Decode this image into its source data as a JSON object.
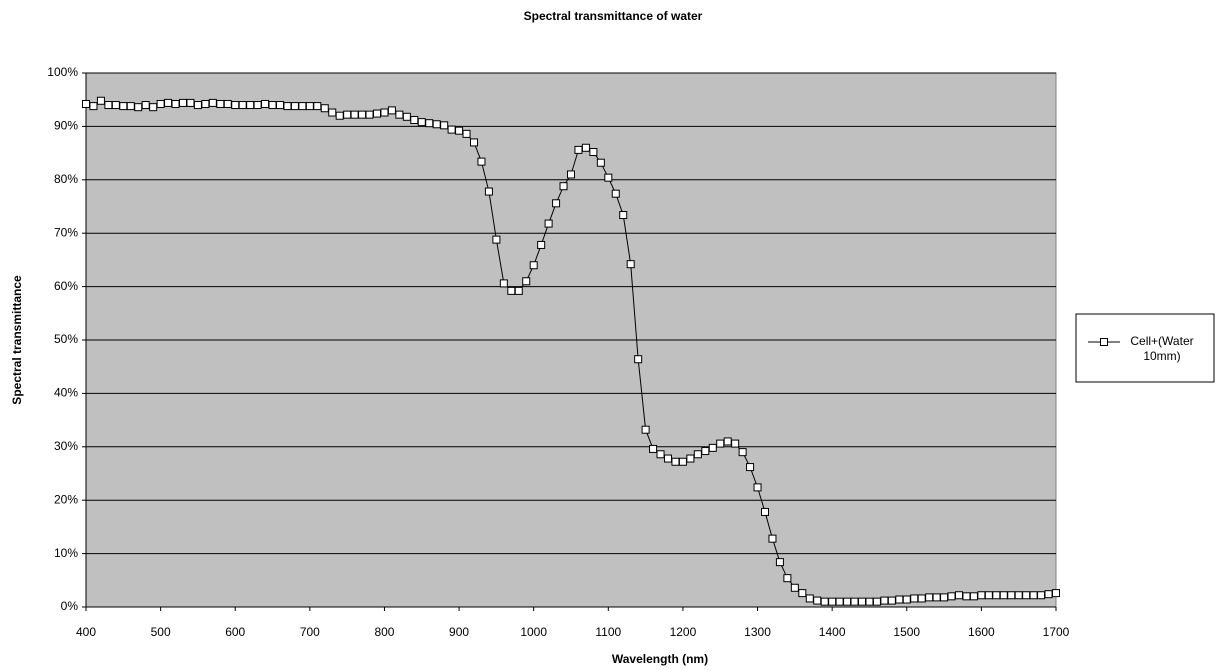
{
  "chart_data": {
    "type": "line",
    "title": "Spectral transmittance of water",
    "xlabel": "Wavelength (nm)",
    "ylabel": "Spectral transmittance",
    "x": [
      400,
      410,
      420,
      430,
      440,
      450,
      460,
      470,
      480,
      490,
      500,
      510,
      520,
      530,
      540,
      550,
      560,
      570,
      580,
      590,
      600,
      610,
      620,
      630,
      640,
      650,
      660,
      670,
      680,
      690,
      700,
      710,
      720,
      730,
      740,
      750,
      760,
      770,
      780,
      790,
      800,
      810,
      820,
      830,
      840,
      850,
      860,
      870,
      880,
      890,
      900,
      910,
      920,
      930,
      940,
      950,
      960,
      970,
      980,
      990,
      1000,
      1010,
      1020,
      1030,
      1040,
      1050,
      1060,
      1070,
      1080,
      1090,
      1100,
      1110,
      1120,
      1130,
      1140,
      1150,
      1160,
      1170,
      1180,
      1190,
      1200,
      1210,
      1220,
      1230,
      1240,
      1250,
      1260,
      1270,
      1280,
      1290,
      1300,
      1310,
      1320,
      1330,
      1340,
      1350,
      1360,
      1370,
      1380,
      1390,
      1400,
      1410,
      1420,
      1430,
      1440,
      1450,
      1460,
      1470,
      1480,
      1490,
      1500,
      1510,
      1520,
      1530,
      1540,
      1550,
      1560,
      1570,
      1580,
      1590,
      1600,
      1610,
      1620,
      1630,
      1640,
      1650,
      1660,
      1670,
      1680,
      1690,
      1700
    ],
    "series": [
      {
        "name": "Cell+(Water 10mm)",
        "color": "#000000",
        "values": [
          94.2,
          93.8,
          94.8,
          94.0,
          94.0,
          93.8,
          93.8,
          93.6,
          94.0,
          93.6,
          94.2,
          94.4,
          94.2,
          94.4,
          94.4,
          94.0,
          94.2,
          94.4,
          94.2,
          94.2,
          94.0,
          94.0,
          94.0,
          94.0,
          94.2,
          94.0,
          94.0,
          93.8,
          93.8,
          93.8,
          93.8,
          93.8,
          93.4,
          92.6,
          92.0,
          92.2,
          92.2,
          92.2,
          92.2,
          92.4,
          92.6,
          93.0,
          92.2,
          91.8,
          91.2,
          90.8,
          90.6,
          90.4,
          90.2,
          89.4,
          89.2,
          88.6,
          87.0,
          83.4,
          77.8,
          68.8,
          60.6,
          59.2,
          59.2,
          61.0,
          64.0,
          67.8,
          71.8,
          75.6,
          78.8,
          81.0,
          85.6,
          86.0,
          85.2,
          83.2,
          80.4,
          77.4,
          73.4,
          64.2,
          46.4,
          33.2,
          29.6,
          28.6,
          27.8,
          27.2,
          27.2,
          27.8,
          28.6,
          29.2,
          29.8,
          30.6,
          31.0,
          30.6,
          29.0,
          26.2,
          22.4,
          17.8,
          12.8,
          8.4,
          5.4,
          3.6,
          2.6,
          1.6,
          1.2,
          1.0,
          1.0,
          1.0,
          1.0,
          1.0,
          1.0,
          1.0,
          1.0,
          1.2,
          1.2,
          1.4,
          1.4,
          1.6,
          1.6,
          1.8,
          1.8,
          1.8,
          2.0,
          2.2,
          2.0,
          2.0,
          2.2,
          2.2,
          2.2,
          2.2,
          2.2,
          2.2,
          2.2,
          2.2,
          2.2,
          2.4,
          2.6
        ]
      }
    ],
    "xlim": [
      400,
      1700
    ],
    "xticks": [
      400,
      500,
      600,
      700,
      800,
      900,
      1000,
      1100,
      1200,
      1300,
      1400,
      1500,
      1600,
      1700
    ],
    "ylim": [
      0,
      100
    ],
    "yticks": [
      {
        "value": 0,
        "label": "0%"
      },
      {
        "value": 10,
        "label": "10%"
      },
      {
        "value": 20,
        "label": "20%"
      },
      {
        "value": 30,
        "label": "30%"
      },
      {
        "value": 40,
        "label": "40%"
      },
      {
        "value": 50,
        "label": "50%"
      },
      {
        "value": 60,
        "label": "60%"
      },
      {
        "value": 70,
        "label": "70%"
      },
      {
        "value": 80,
        "label": "80%"
      },
      {
        "value": 90,
        "label": "90%"
      },
      {
        "value": 100,
        "label": "100%"
      }
    ],
    "grid": true,
    "legend": "right",
    "plot_background": "#c0c0c0"
  }
}
